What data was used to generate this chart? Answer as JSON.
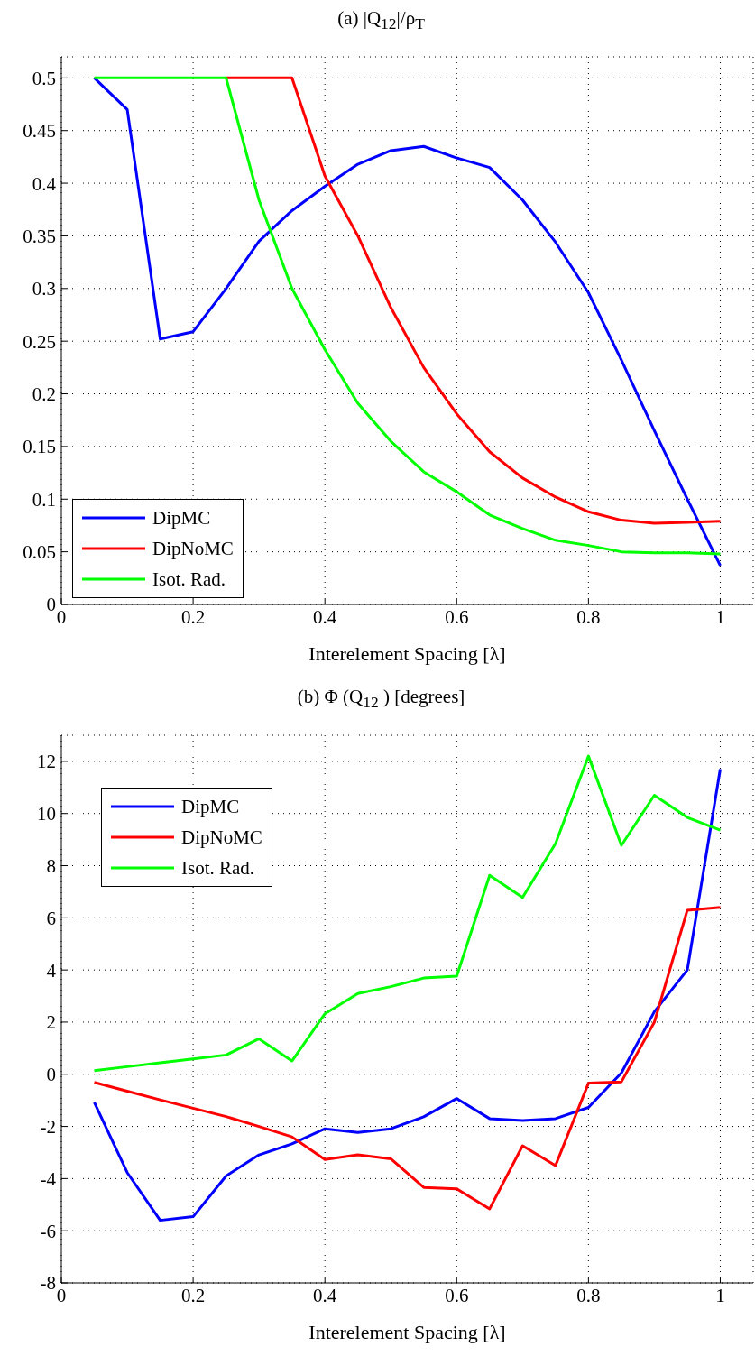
{
  "chart_data": [
    {
      "type": "line",
      "title": "(a) |Q$_{12}$|/ρ$_{T}$",
      "xlabel": "Interelement Spacing [λ]",
      "x": [
        0.05,
        0.1,
        0.15,
        0.2,
        0.25,
        0.3,
        0.35,
        0.4,
        0.45,
        0.5,
        0.55,
        0.6,
        0.65,
        0.7,
        0.75,
        0.8,
        0.85,
        0.9,
        0.95,
        1.0
      ],
      "series": [
        {
          "name": "DipMC",
          "color": "#0000ff",
          "values": [
            0.5,
            0.47,
            0.252,
            0.259,
            0.3,
            0.345,
            0.374,
            0.397,
            0.418,
            0.431,
            0.435,
            0.424,
            0.415,
            0.384,
            0.344,
            0.296,
            0.232,
            0.165,
            0.1,
            0.037
          ]
        },
        {
          "name": "DipNoMC",
          "color": "#ff0000",
          "values": [
            null,
            null,
            null,
            null,
            0.5,
            0.5,
            0.5,
            0.407,
            0.35,
            0.282,
            0.225,
            0.181,
            0.145,
            0.12,
            0.102,
            0.088,
            0.08,
            0.077,
            0.078,
            0.079
          ]
        },
        {
          "name": "Isot. Rad.",
          "color": "#00ff00",
          "values": [
            0.5,
            0.5,
            0.5,
            0.5,
            0.5,
            0.384,
            0.3,
            0.242,
            0.191,
            0.155,
            0.126,
            0.107,
            0.085,
            0.072,
            0.061,
            0.056,
            0.05,
            0.049,
            0.049,
            0.048
          ]
        }
      ],
      "xlim": [
        0,
        1.05
      ],
      "xticks": [
        0,
        0.2,
        0.4,
        0.6,
        0.8,
        1
      ],
      "ylim": [
        0,
        0.52
      ],
      "yticks": [
        0,
        0.05,
        0.1,
        0.15,
        0.2,
        0.25,
        0.3,
        0.35,
        0.4,
        0.45,
        0.5
      ],
      "grid": true,
      "legend": "bottom left"
    },
    {
      "type": "line",
      "title": "(b) Φ (Q$_{12}$ ) [degrees]",
      "xlabel": "Interelement Spacing [λ]",
      "x": [
        0.05,
        0.1,
        0.15,
        0.2,
        0.25,
        0.3,
        0.35,
        0.4,
        0.45,
        0.5,
        0.55,
        0.6,
        0.65,
        0.7,
        0.75,
        0.8,
        0.85,
        0.9,
        0.95,
        1.0
      ],
      "series": [
        {
          "name": "DipMC",
          "color": "#0000ff",
          "values": [
            -1.08,
            -3.77,
            -5.6,
            -5.46,
            -3.9,
            -3.09,
            -2.67,
            -2.09,
            -2.23,
            -2.09,
            -1.63,
            -0.93,
            -1.7,
            -1.77,
            -1.7,
            -1.27,
            0.05,
            2.4,
            4.0,
            11.7
          ]
        },
        {
          "name": "DipNoMC",
          "color": "#ff0000",
          "values": [
            -0.31,
            -0.65,
            -0.98,
            -1.3,
            -1.62,
            -2.0,
            -2.4,
            -3.27,
            -3.09,
            -3.24,
            -4.34,
            -4.39,
            -5.16,
            -2.74,
            -3.5,
            -0.34,
            -0.29,
            2.0,
            6.29,
            6.4
          ]
        },
        {
          "name": "Isot. Rad.",
          "color": "#00ff00",
          "values": [
            0.14,
            0.29,
            0.44,
            0.59,
            0.74,
            1.36,
            0.51,
            2.32,
            3.1,
            3.36,
            3.69,
            3.76,
            7.63,
            6.78,
            8.85,
            12.2,
            8.78,
            10.7,
            9.85,
            9.36
          ]
        }
      ],
      "xlim": [
        0,
        1.05
      ],
      "xticks": [
        0,
        0.2,
        0.4,
        0.6,
        0.8,
        1
      ],
      "ylim": [
        -8,
        13
      ],
      "yticks": [
        -8,
        -6,
        -4,
        -2,
        0,
        2,
        4,
        6,
        8,
        10,
        12
      ],
      "grid": true,
      "legend": "top left"
    }
  ]
}
